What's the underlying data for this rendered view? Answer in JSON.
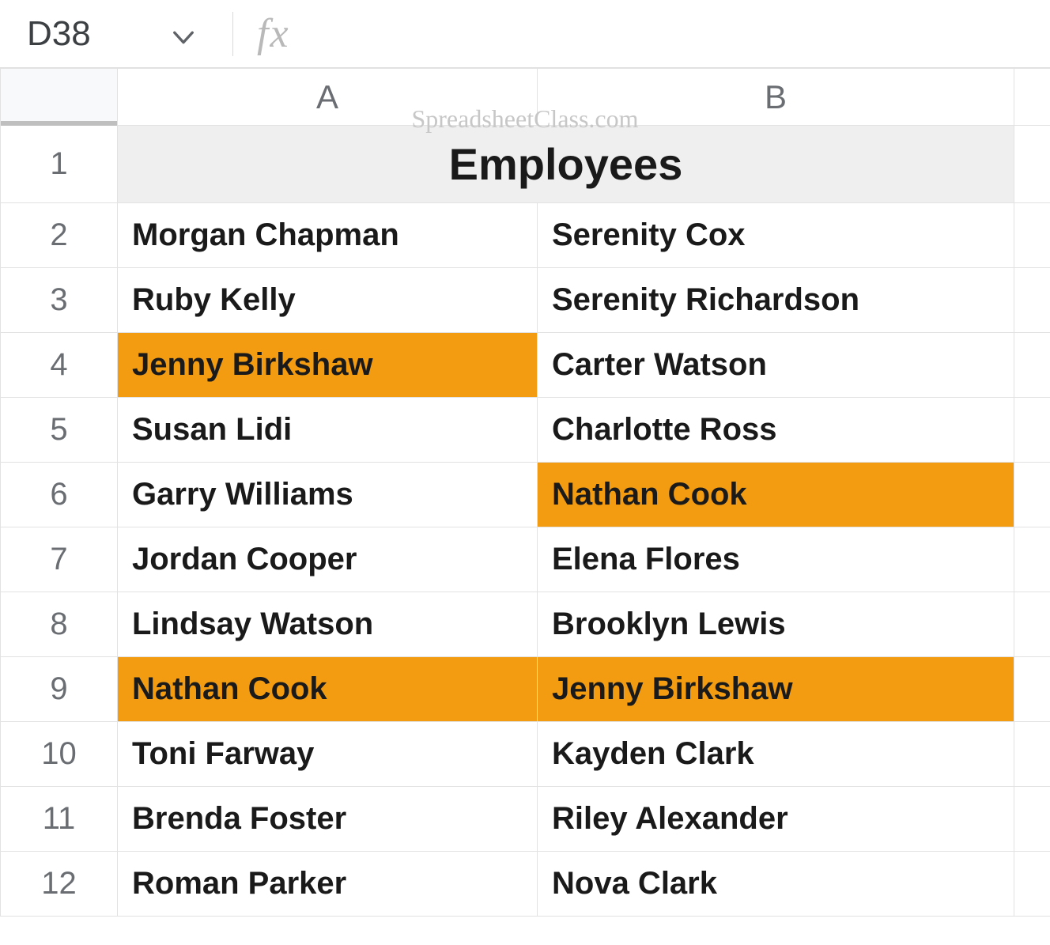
{
  "colors": {
    "highlight": "#f39c12",
    "header_bg": "#efefef",
    "grid_line": "#e2e2e2",
    "rowhdr_text": "#6a6e73",
    "watermark": "#c7c7c7"
  },
  "name_box": {
    "value": "D38"
  },
  "formula_bar": {
    "fx_label": "fx",
    "value": ""
  },
  "watermark": "SpreadsheetClass.com",
  "columns": [
    "A",
    "B"
  ],
  "header": {
    "row": 1,
    "label": "Employees"
  },
  "rows": [
    {
      "n": 2,
      "a": "Morgan Chapman",
      "b": "Serenity Cox",
      "hl_a": false,
      "hl_b": false
    },
    {
      "n": 3,
      "a": "Ruby Kelly",
      "b": "Serenity Richardson",
      "hl_a": false,
      "hl_b": false
    },
    {
      "n": 4,
      "a": "Jenny Birkshaw",
      "b": "Carter Watson",
      "hl_a": true,
      "hl_b": false
    },
    {
      "n": 5,
      "a": "Susan Lidi",
      "b": "Charlotte Ross",
      "hl_a": false,
      "hl_b": false
    },
    {
      "n": 6,
      "a": "Garry Williams",
      "b": "Nathan Cook",
      "hl_a": false,
      "hl_b": true
    },
    {
      "n": 7,
      "a": "Jordan Cooper",
      "b": "Elena Flores",
      "hl_a": false,
      "hl_b": false
    },
    {
      "n": 8,
      "a": "Lindsay Watson",
      "b": "Brooklyn Lewis",
      "hl_a": false,
      "hl_b": false
    },
    {
      "n": 9,
      "a": "Nathan Cook",
      "b": "Jenny Birkshaw",
      "hl_a": true,
      "hl_b": true
    },
    {
      "n": 10,
      "a": "Toni Farway",
      "b": "Kayden Clark",
      "hl_a": false,
      "hl_b": false
    },
    {
      "n": 11,
      "a": "Brenda Foster",
      "b": "Riley Alexander",
      "hl_a": false,
      "hl_b": false
    },
    {
      "n": 12,
      "a": "Roman Parker",
      "b": "Nova Clark",
      "hl_a": false,
      "hl_b": false
    }
  ]
}
